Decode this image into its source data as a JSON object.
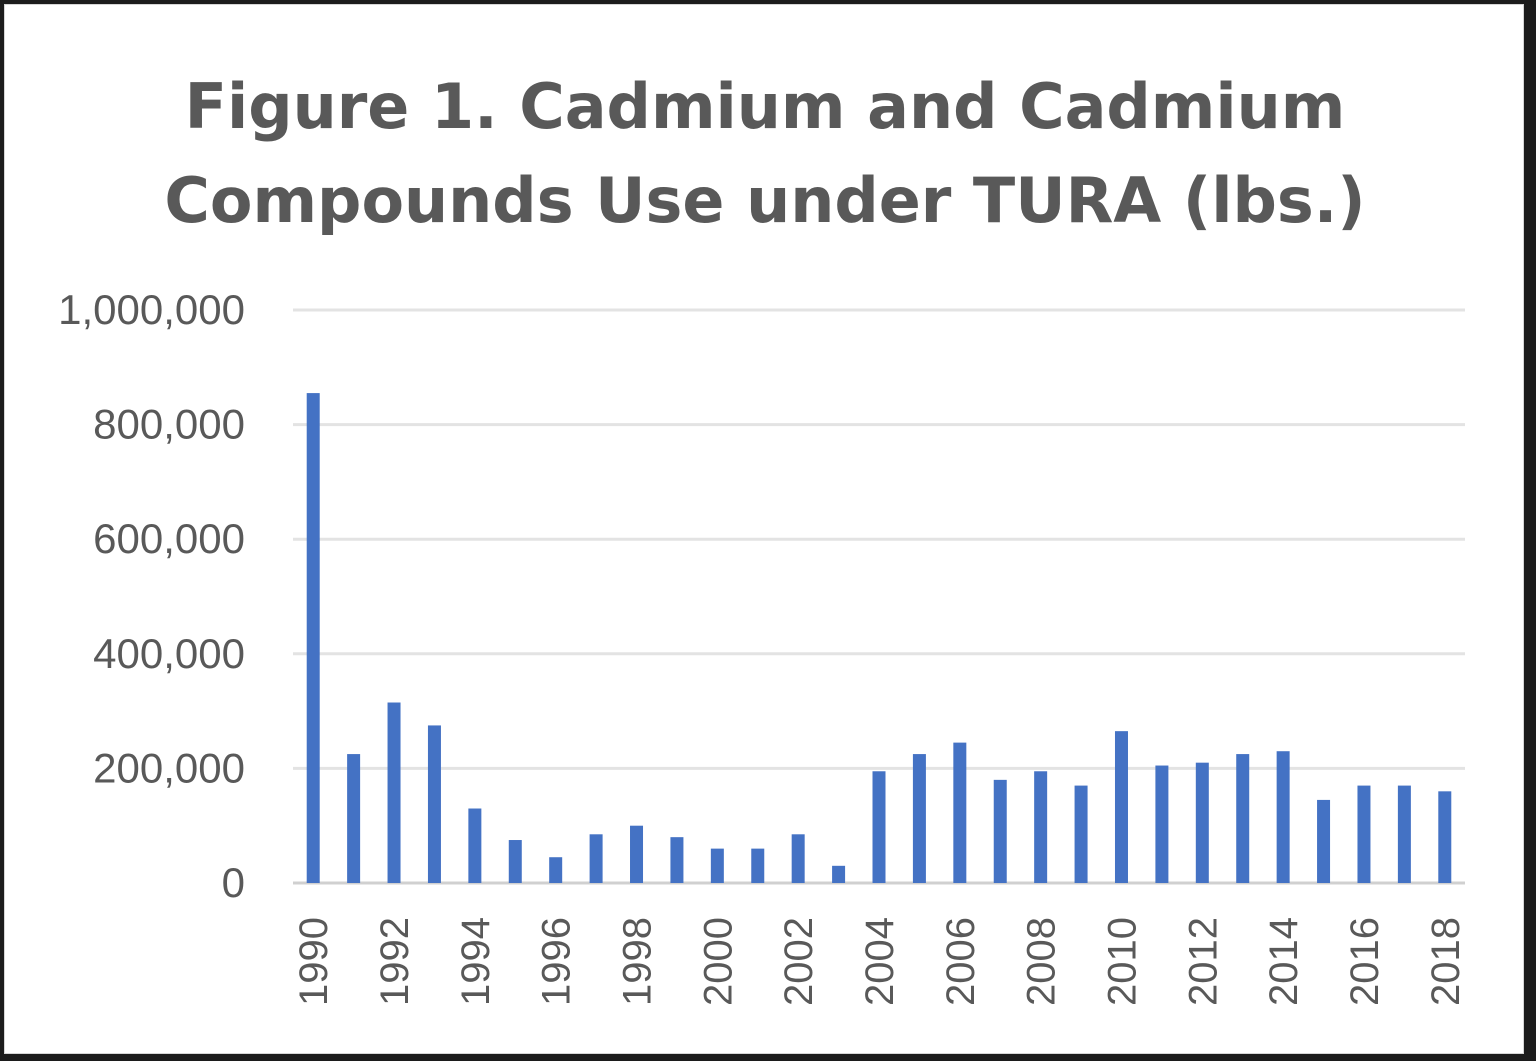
{
  "chart_data": {
    "type": "bar",
    "title": "Figure 1. Cadmium and Cadmium\nCompounds Use under TURA (lbs.)",
    "xlabel": "",
    "ylabel": "",
    "ylim": [
      0,
      1000000
    ],
    "yticks": [
      {
        "value": 0,
        "label": "0"
      },
      {
        "value": 200000,
        "label": "200,000"
      },
      {
        "value": 400000,
        "label": "400,000"
      },
      {
        "value": 600000,
        "label": "600,000"
      },
      {
        "value": 800000,
        "label": "800,000"
      },
      {
        "value": 1000000,
        "label": "1,000,000"
      }
    ],
    "grid": true,
    "bar_color": "#4472C4",
    "categories": [
      "1990",
      "1991",
      "1992",
      "1993",
      "1994",
      "1995",
      "1996",
      "1997",
      "1998",
      "1999",
      "2000",
      "2001",
      "2002",
      "2003",
      "2004",
      "2005",
      "2006",
      "2007",
      "2008",
      "2009",
      "2010",
      "2011",
      "2012",
      "2013",
      "2014",
      "2015",
      "2016",
      "2017",
      "2018"
    ],
    "xtick_labels": [
      "1990",
      "",
      "1992",
      "",
      "1994",
      "",
      "1996",
      "",
      "1998",
      "",
      "2000",
      "",
      "2002",
      "",
      "2004",
      "",
      "2006",
      "",
      "2008",
      "",
      "2010",
      "",
      "2012",
      "",
      "2014",
      "",
      "2016",
      "",
      "2018"
    ],
    "values": [
      855000,
      225000,
      315000,
      275000,
      130000,
      75000,
      45000,
      85000,
      100000,
      80000,
      60000,
      60000,
      85000,
      30000,
      195000,
      225000,
      245000,
      180000,
      195000,
      170000,
      265000,
      205000,
      210000,
      225000,
      230000,
      145000,
      170000,
      170000,
      160000
    ]
  }
}
